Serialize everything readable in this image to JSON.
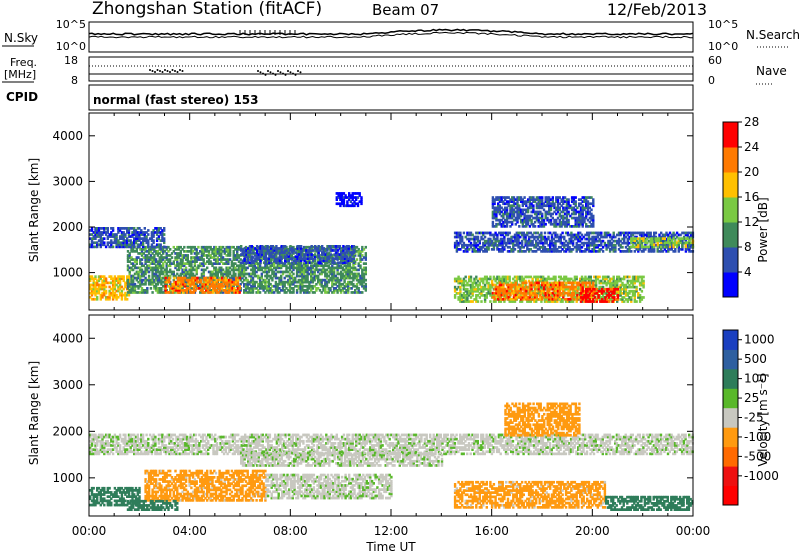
{
  "header": {
    "title": "Zhongshan Station (fitACF)",
    "beam": "Beam 07",
    "date": "12/Feb/2013"
  },
  "panels": {
    "nsky": {
      "label": "N.Sky",
      "ticks_left": [
        "10^5",
        "10^0"
      ],
      "right_label": "N.Search",
      "ticks_right": [
        "10^5",
        "10^0"
      ]
    },
    "freq": {
      "label_line1": "Freq.",
      "label_line2": "[MHz]",
      "ticks_left": [
        "18",
        "8"
      ],
      "right_label": "Nave",
      "ticks_right": [
        "60",
        "0"
      ]
    },
    "cpid": {
      "label": "CPID",
      "mode_text": "normal (fast stereo) 153"
    }
  },
  "chart_data": [
    {
      "type": "heatmap",
      "name": "power",
      "ylabel": "Slant Range [km]",
      "y_ticks": [
        1000,
        2000,
        3000,
        4000
      ],
      "ylim": [
        180,
        4500
      ],
      "xlim": [
        0,
        24
      ],
      "colorbar": {
        "label": "Power [dB]",
        "tick_labels": [
          "4",
          "8",
          "12",
          "16",
          "20",
          "24",
          "28"
        ],
        "colors": [
          "#0000ff",
          "#2e4fb0",
          "#3f8a5a",
          "#7ac943",
          "#ffc000",
          "#ff7a00",
          "#ff0000"
        ]
      },
      "approx_regions": [
        {
          "t_start": 0.0,
          "t_end": 1.6,
          "range_min": 400,
          "range_max": 900,
          "power_db": 20
        },
        {
          "t_start": 1.5,
          "t_end": 11.0,
          "range_min": 550,
          "range_max": 1550,
          "power_db": 12
        },
        {
          "t_start": 3.0,
          "t_end": 6.0,
          "range_min": 550,
          "range_max": 900,
          "power_db": 24
        },
        {
          "t_start": 6.0,
          "t_end": 10.5,
          "range_min": 1200,
          "range_max": 1600,
          "power_db": 8
        },
        {
          "t_start": 0.0,
          "t_end": 3.0,
          "range_min": 1550,
          "range_max": 2000,
          "power_db": 8
        },
        {
          "t_start": 14.5,
          "t_end": 22.0,
          "range_min": 350,
          "range_max": 900,
          "power_db": 16
        },
        {
          "t_start": 16.0,
          "t_end": 20.0,
          "range_min": 400,
          "range_max": 800,
          "power_db": 24
        },
        {
          "t_start": 19.5,
          "t_end": 21.0,
          "range_min": 350,
          "range_max": 650,
          "power_db": 28
        },
        {
          "t_start": 14.5,
          "t_end": 24.0,
          "range_min": 1450,
          "range_max": 1900,
          "power_db": 8
        },
        {
          "t_start": 21.5,
          "t_end": 24.0,
          "range_min": 1550,
          "range_max": 1750,
          "power_db": 16
        },
        {
          "t_start": 9.8,
          "t_end": 10.8,
          "range_min": 2450,
          "range_max": 2750,
          "power_db": 4
        },
        {
          "t_start": 16.0,
          "t_end": 20.0,
          "range_min": 2000,
          "range_max": 2650,
          "power_db": 8
        }
      ]
    },
    {
      "type": "heatmap",
      "name": "velocity",
      "ylabel": "Slant Range [km]",
      "xlabel": "Time UT",
      "x_ticks": [
        "00:00",
        "04:00",
        "08:00",
        "12:00",
        "16:00",
        "20:00",
        "00:00"
      ],
      "y_ticks": [
        1000,
        2000,
        3000,
        4000
      ],
      "ylim": [
        180,
        4500
      ],
      "xlim": [
        0,
        24
      ],
      "colorbar": {
        "label": "Velocity [m s⁻¹]",
        "tick_labels": [
          "1000",
          "500",
          "100",
          "25",
          "-25",
          "-100",
          "-500",
          "-1000"
        ],
        "colors": [
          "#1a3fc0",
          "#2e5fa0",
          "#2e7d5a",
          "#59b82a",
          "#c8c8c0",
          "#ff9a10",
          "#ff6a00",
          "#ee1010",
          "#ff0000"
        ]
      },
      "approx_regions": [
        {
          "t_start": 0.0,
          "t_end": 24.0,
          "range_min": 1500,
          "range_max": 1950,
          "velocity_ms": 0
        },
        {
          "t_start": 6.0,
          "t_end": 14.0,
          "range_min": 1250,
          "range_max": 1550,
          "velocity_ms": 0
        },
        {
          "t_start": 2.2,
          "t_end": 7.0,
          "range_min": 500,
          "range_max": 1150,
          "velocity_ms": -100
        },
        {
          "t_start": 7.0,
          "t_end": 12.0,
          "range_min": 550,
          "range_max": 1050,
          "velocity_ms": 0
        },
        {
          "t_start": 0.0,
          "t_end": 2.0,
          "range_min": 400,
          "range_max": 800,
          "velocity_ms": 200
        },
        {
          "t_start": 1.5,
          "t_end": 3.5,
          "range_min": 300,
          "range_max": 500,
          "velocity_ms": 200
        },
        {
          "t_start": 14.5,
          "t_end": 20.5,
          "range_min": 350,
          "range_max": 900,
          "velocity_ms": -100
        },
        {
          "t_start": 20.5,
          "t_end": 24.0,
          "range_min": 300,
          "range_max": 600,
          "velocity_ms": 150
        },
        {
          "t_start": 16.5,
          "t_end": 19.5,
          "range_min": 1900,
          "range_max": 2600,
          "velocity_ms": -150
        }
      ]
    }
  ]
}
